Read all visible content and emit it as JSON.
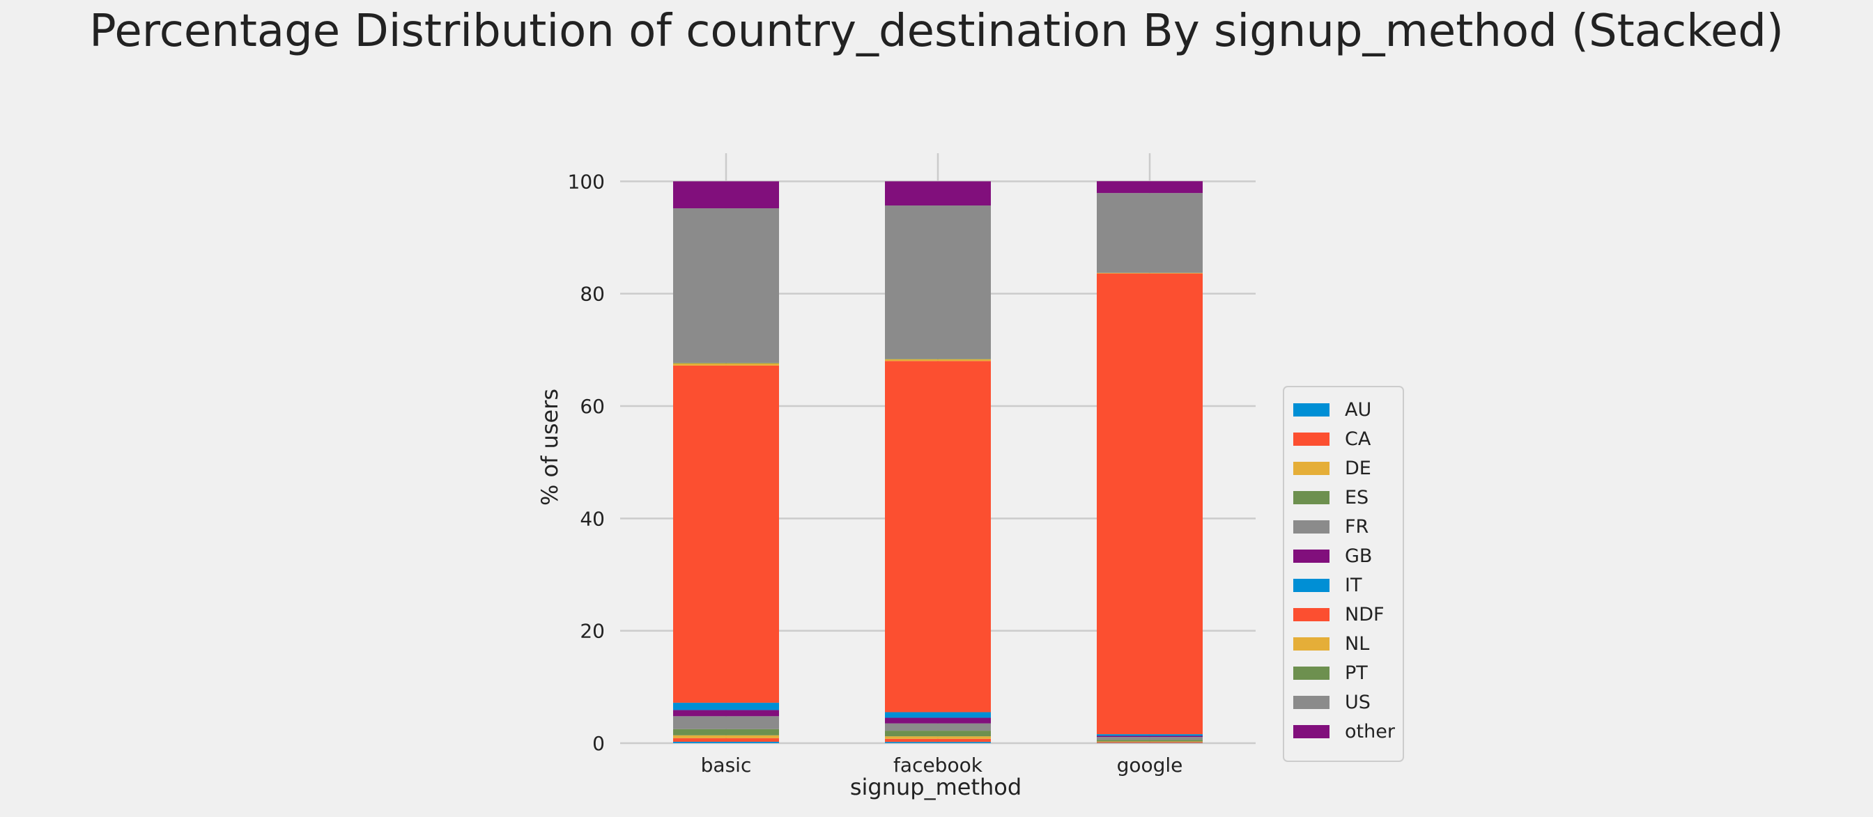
{
  "chart_data": {
    "type": "bar",
    "stacked": true,
    "title": "Percentage Distribution of country_destination By signup_method (Stacked)",
    "xlabel": "signup_method",
    "ylabel": "% of users",
    "categories": [
      "basic",
      "facebook",
      "google"
    ],
    "ylim": [
      0,
      105
    ],
    "yticks": [
      0,
      20,
      40,
      60,
      80,
      100
    ],
    "grid": true,
    "legend_position": "right",
    "series": [
      {
        "name": "AU",
        "color": "#008fd5",
        "values": [
          0.25,
          0.22,
          0.05
        ]
      },
      {
        "name": "CA",
        "color": "#fc4f30",
        "values": [
          0.65,
          0.55,
          0.15
        ]
      },
      {
        "name": "DE",
        "color": "#e5ae38",
        "values": [
          0.5,
          0.45,
          0.1
        ]
      },
      {
        "name": "ES",
        "color": "#6d904f",
        "values": [
          1.1,
          1.0,
          0.3
        ]
      },
      {
        "name": "FR",
        "color": "#8b8b8b",
        "values": [
          2.3,
          1.3,
          0.5
        ]
      },
      {
        "name": "GB",
        "color": "#810f7c",
        "values": [
          1.1,
          1.0,
          0.2
        ]
      },
      {
        "name": "IT",
        "color": "#008fd5",
        "values": [
          1.3,
          1.0,
          0.3
        ]
      },
      {
        "name": "NDF",
        "color": "#fc4f30",
        "values": [
          60.0,
          62.5,
          82.0
        ]
      },
      {
        "name": "NL",
        "color": "#e5ae38",
        "values": [
          0.4,
          0.3,
          0.1
        ]
      },
      {
        "name": "PT",
        "color": "#6d904f",
        "values": [
          0.1,
          0.08,
          0.02
        ]
      },
      {
        "name": "US",
        "color": "#8b8b8b",
        "values": [
          27.5,
          27.3,
          14.2
        ]
      },
      {
        "name": "other",
        "color": "#810f7c",
        "values": [
          4.8,
          4.3,
          2.1
        ]
      }
    ]
  }
}
